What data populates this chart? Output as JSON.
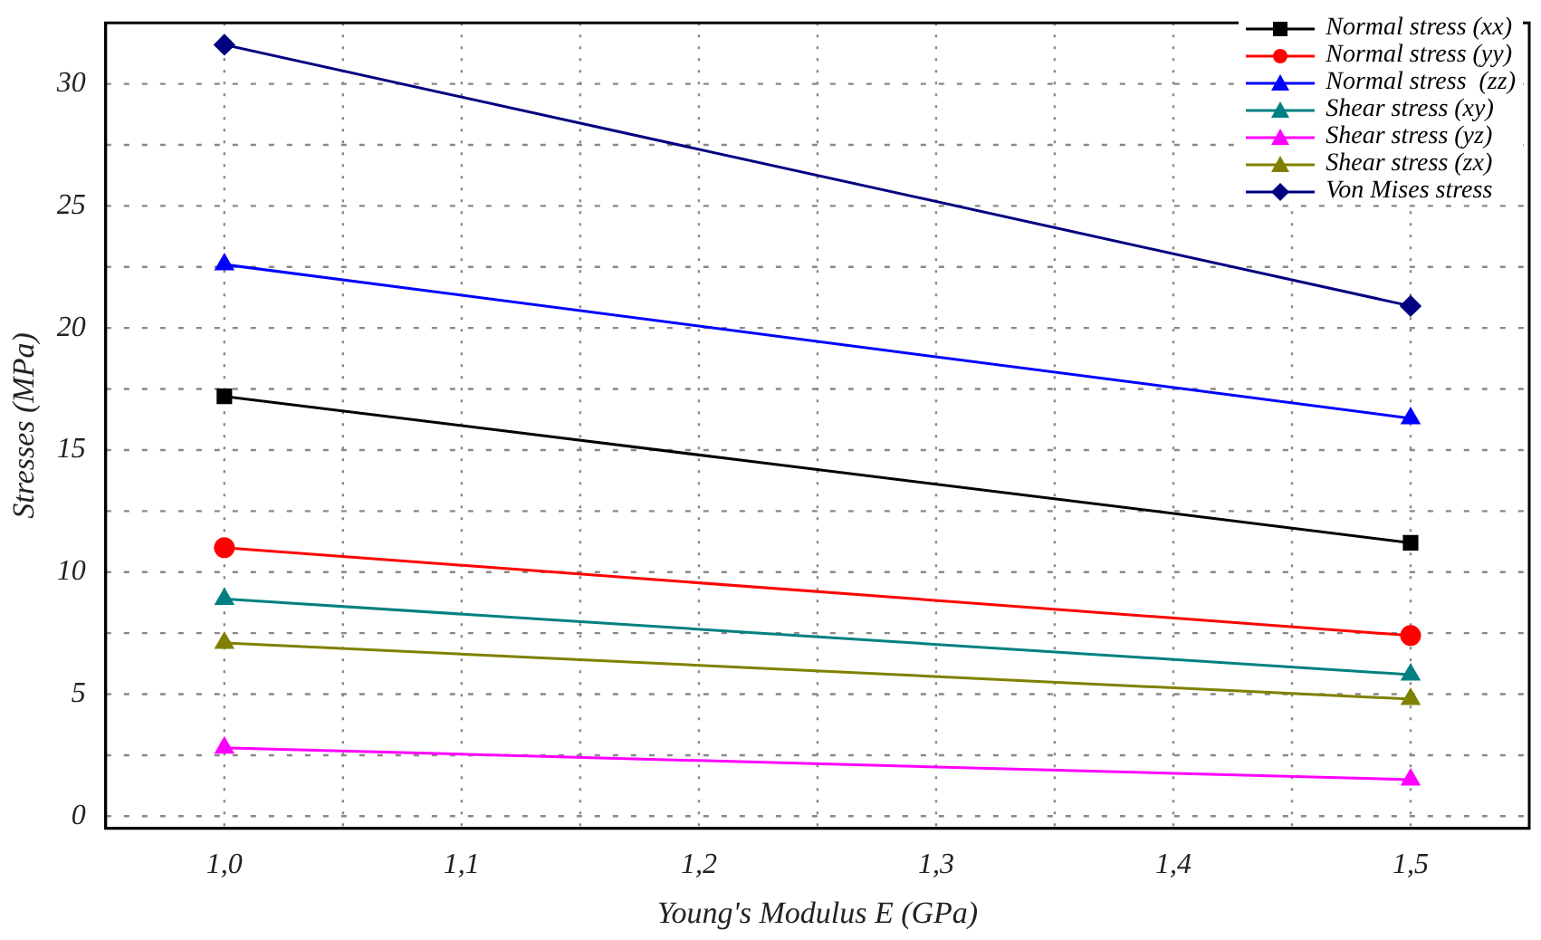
{
  "chart_data": {
    "type": "line",
    "xlabel": "Young's Modulus E (GPa)",
    "ylabel": "Stresses (MPa)",
    "x": [
      1.0,
      1.5
    ],
    "xlim": [
      0.95,
      1.55
    ],
    "xticks": [
      {
        "value": 1.0,
        "label": "1,0"
      },
      {
        "value": 1.1,
        "label": "1,1"
      },
      {
        "value": 1.2,
        "label": "1,2"
      },
      {
        "value": 1.3,
        "label": "1,3"
      },
      {
        "value": 1.4,
        "label": "1,4"
      },
      {
        "value": 1.5,
        "label": "1,5"
      }
    ],
    "ylim": [
      -0.5,
      32.5
    ],
    "yticks": [
      0,
      5,
      10,
      15,
      20,
      25,
      30
    ],
    "grid": true,
    "legend": "top right",
    "line_style": "solid",
    "series": [
      {
        "name": "Normal stress (xx)",
        "color": "#000000",
        "marker": "square",
        "values": [
          17.2,
          11.2
        ]
      },
      {
        "name": "Normal stress (yy)",
        "color": "#ff0000",
        "marker": "circle",
        "values": [
          11.0,
          7.4
        ]
      },
      {
        "name": "Normal stress  (zz)",
        "color": "#0000ff",
        "marker": "triangle",
        "values": [
          22.6,
          16.3
        ]
      },
      {
        "name": "Shear stress (xy)",
        "color": "#008080",
        "marker": "triangle",
        "values": [
          8.9,
          5.8
        ]
      },
      {
        "name": "Shear stress (yz)",
        "color": "#ff00ff",
        "marker": "triangle",
        "values": [
          2.8,
          1.5
        ]
      },
      {
        "name": "Shear stress (zx)",
        "color": "#808000",
        "marker": "triangle",
        "values": [
          7.1,
          4.8
        ]
      },
      {
        "name": "Von Mises stress",
        "color": "#000080",
        "marker": "diamond",
        "values": [
          31.6,
          20.9
        ]
      }
    ]
  }
}
